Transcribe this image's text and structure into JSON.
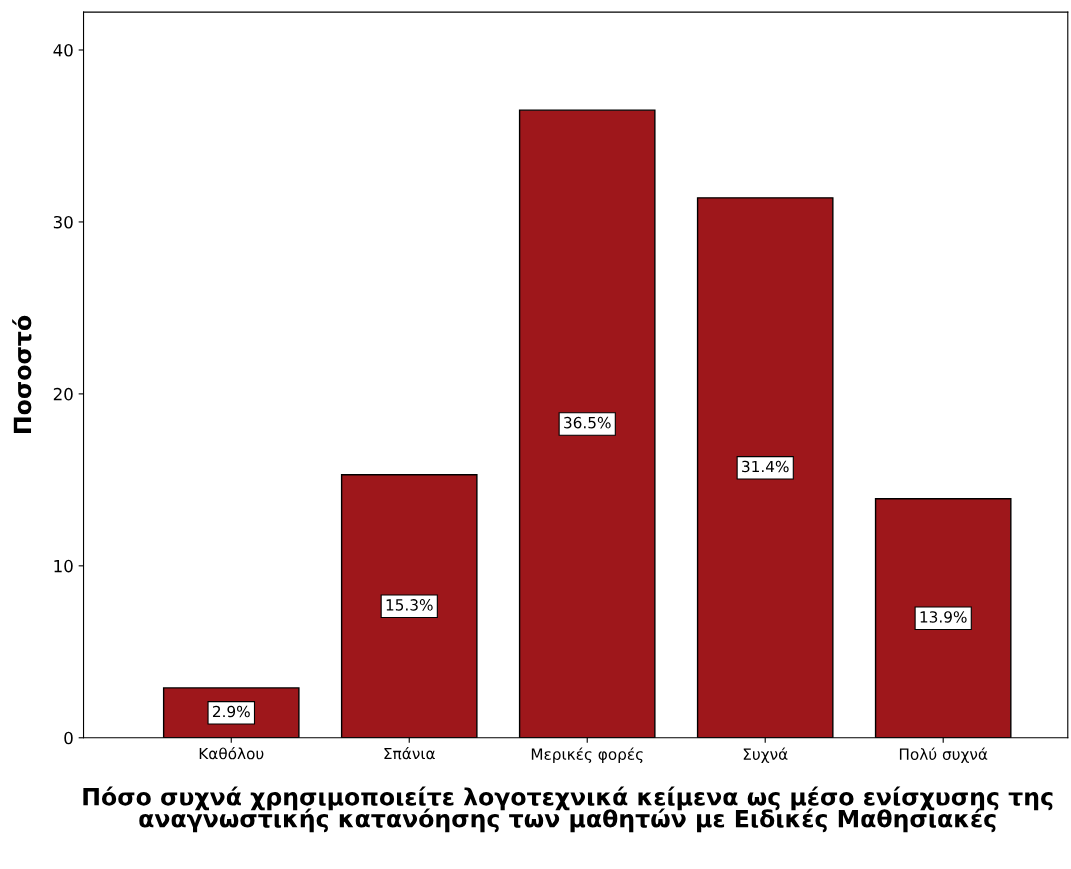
{
  "chart_data": {
    "type": "bar",
    "xlabel": "Πόσο συχνά χρησιμοποιείτε λογοτεχνικά κείμενα ως μέσο ενίσχυσης της αναγνωστικής κατανόησης των μαθητών με Ειδικές Μαθησιακές",
    "ylabel": "Ποσοστό",
    "categories": [
      "Καθόλου",
      "Σπάνια",
      "Μερικές φορές",
      "Συχνά",
      "Πολύ συχνά"
    ],
    "values": [
      2.9,
      15.3,
      36.5,
      31.4,
      13.9
    ],
    "value_labels": [
      "2.9%",
      "15.3%",
      "36.5%",
      "31.4%",
      "13.9%"
    ],
    "color": "#9e171b",
    "ylim": [
      0,
      42.2
    ],
    "yticks": [
      0,
      10,
      20,
      30,
      40
    ],
    "grid": false,
    "legend": false
  }
}
